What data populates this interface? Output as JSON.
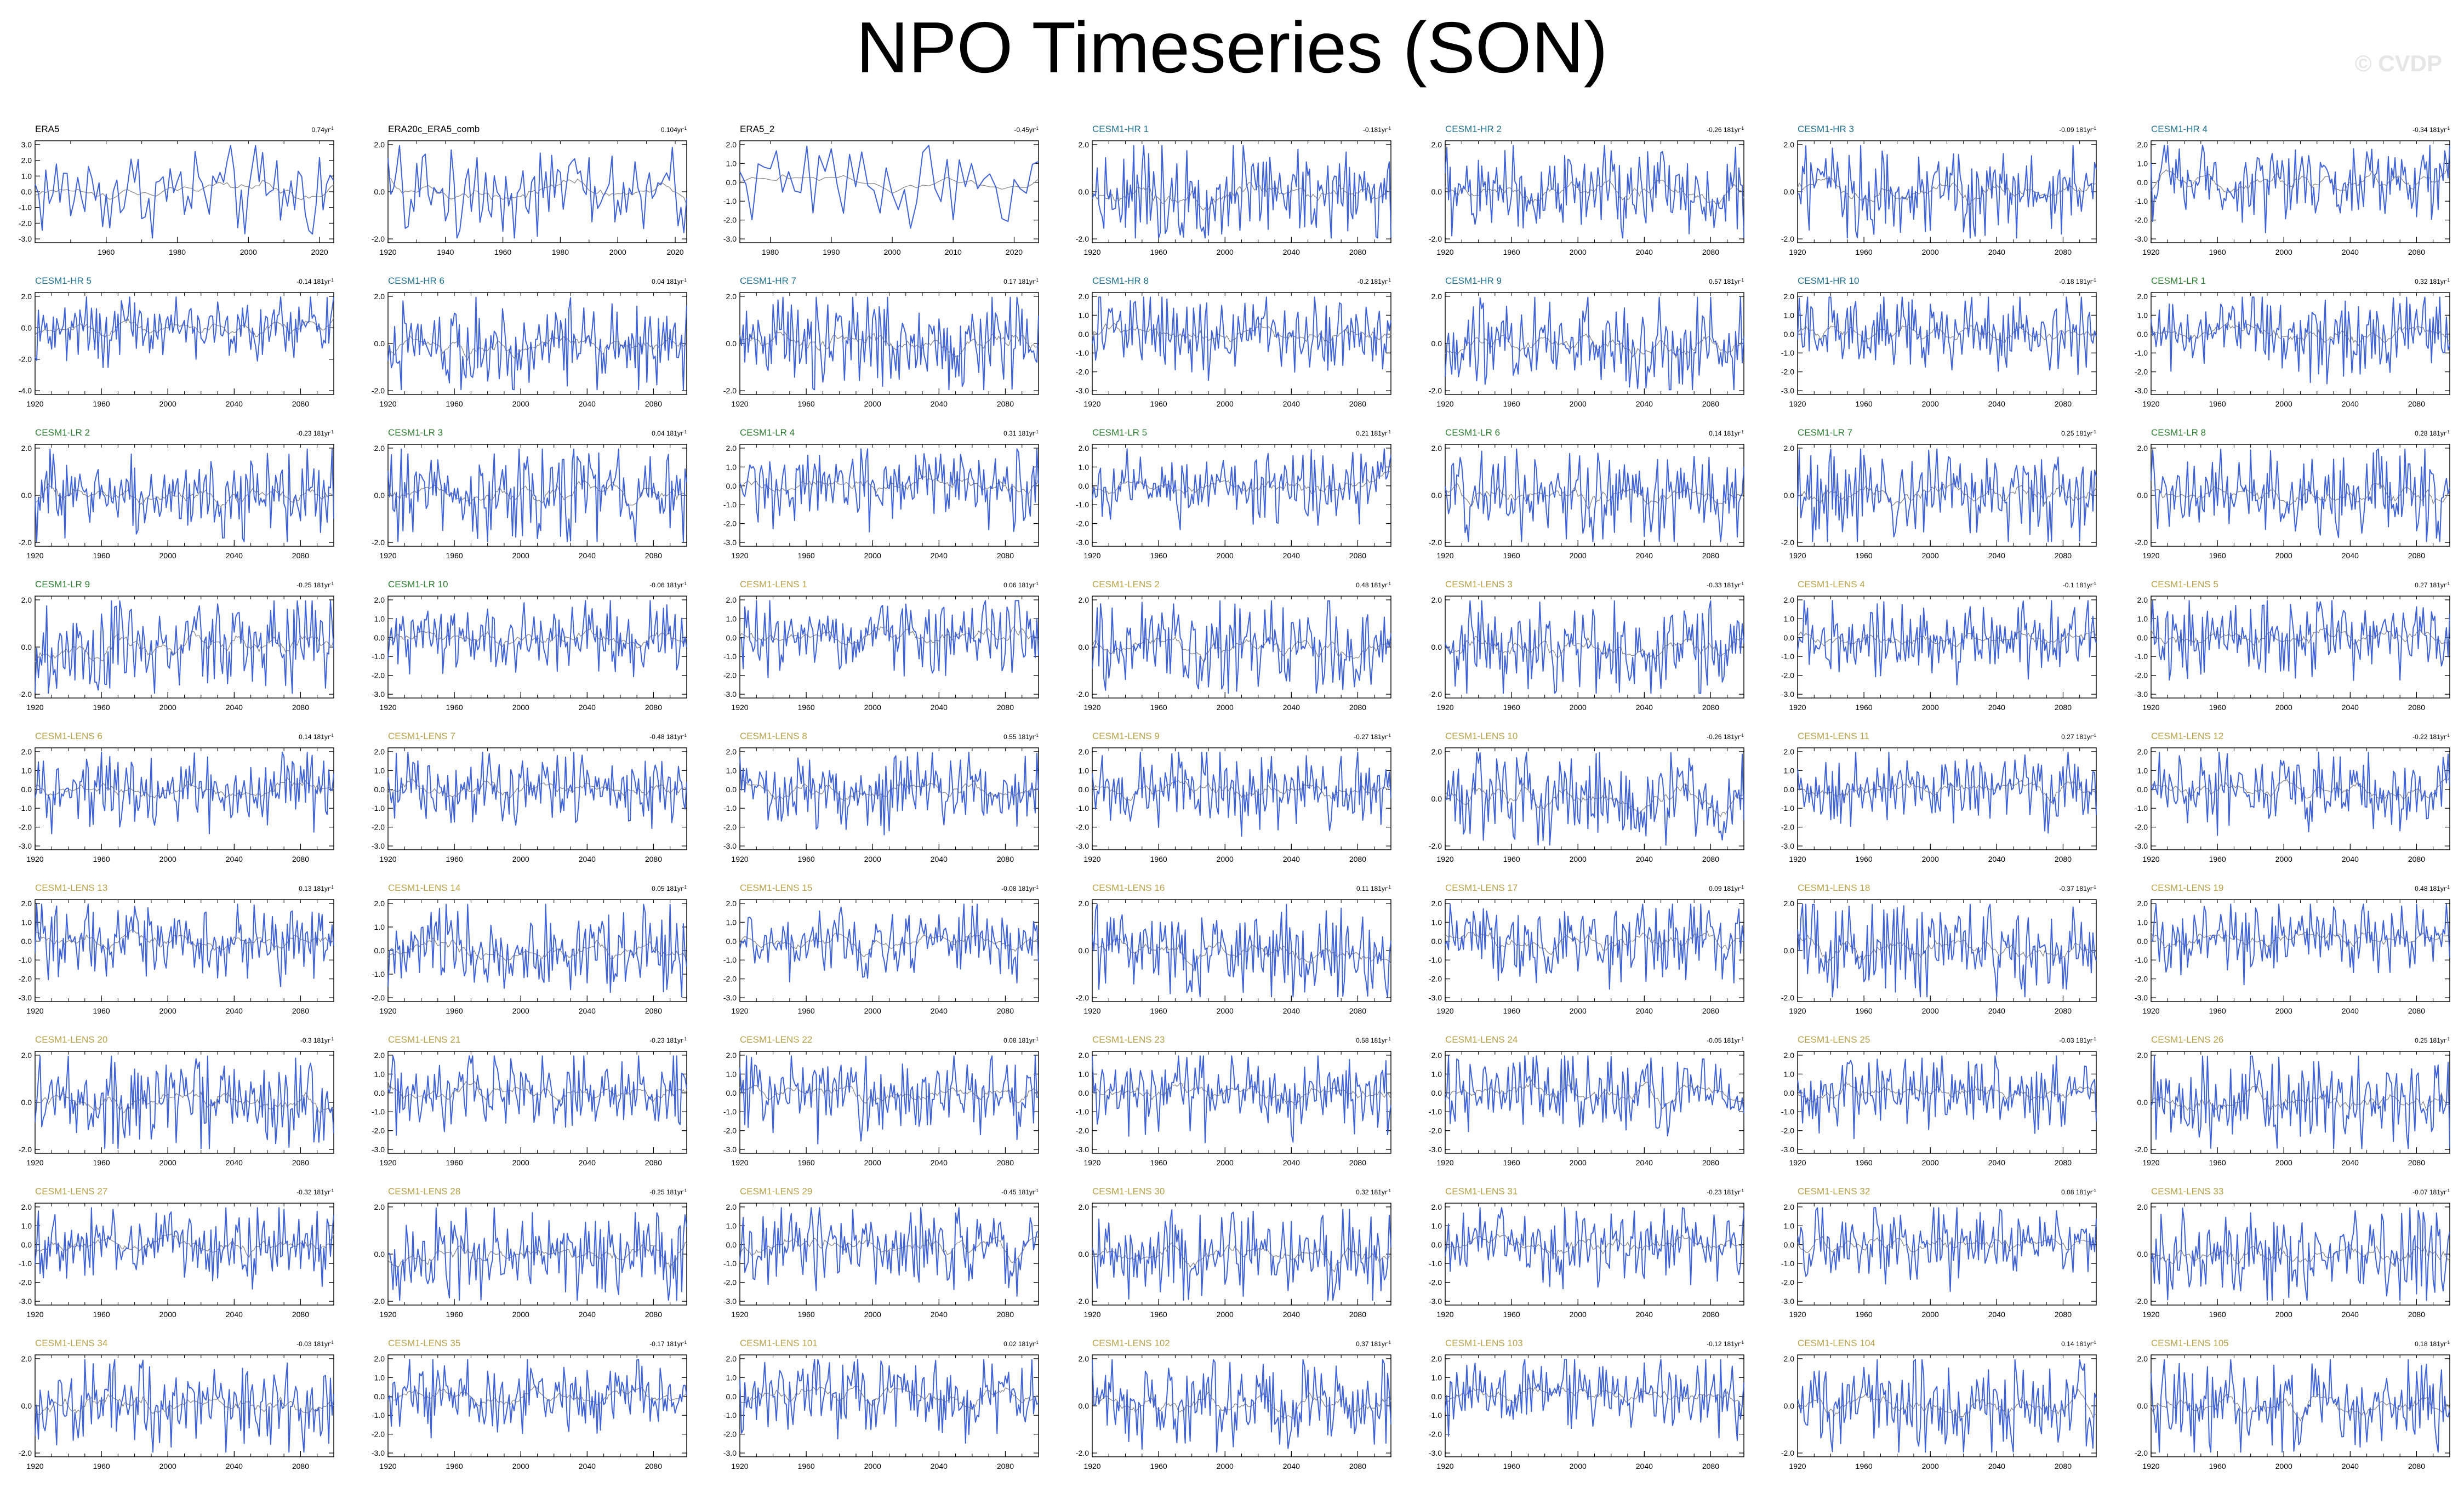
{
  "title": "NPO Timeseries (SON)",
  "watermark": "© CVDP",
  "colors": {
    "obs_title": "#000000",
    "hr_title": "#1f6f8b",
    "lr_title": "#2e7d32",
    "lens_title": "#b7a24a",
    "series": "#3f63d6",
    "filtered": "#8a8a8a",
    "axis": "#000000"
  },
  "chart_data": {
    "type": "line",
    "grid": false,
    "panels": [
      {
        "name": "ERA5",
        "group": "obs",
        "trend": "0.74",
        "x_range": [
          1940,
          2024
        ],
        "x_ticks": [
          1960,
          1980,
          2000,
          2020
        ],
        "y_ticks": [
          3.0,
          2.0,
          1.0,
          0.0,
          -1.0,
          -2.0,
          -3.0
        ]
      },
      {
        "name": "ERA20c_ERA5_comb",
        "group": "obs",
        "trend": "0.104",
        "x_range": [
          1920,
          2024
        ],
        "x_ticks": [
          1920,
          1940,
          1960,
          1980,
          2000,
          2020
        ],
        "y_ticks": [
          2.0,
          0.0,
          -2.0
        ]
      },
      {
        "name": "ERA5_2",
        "group": "obs",
        "trend": "-0.45",
        "x_range": [
          1975,
          2024
        ],
        "x_ticks": [
          1980,
          1990,
          2000,
          2010,
          2020
        ],
        "y_ticks": [
          2.0,
          1.0,
          0.0,
          -1.0,
          -2.0,
          -3.0
        ]
      },
      {
        "name": "CESM1-HR 1",
        "group": "hr",
        "trend": "-0.181",
        "y_ticks": [
          2.0,
          0.0,
          -2.0
        ]
      },
      {
        "name": "CESM1-HR 2",
        "group": "hr",
        "trend": "-0.26 181",
        "y_ticks": [
          2.0,
          0.0,
          -2.0
        ]
      },
      {
        "name": "CESM1-HR 3",
        "group": "hr",
        "trend": "-0.09 181",
        "y_ticks": [
          2.0,
          0.0,
          -2.0
        ]
      },
      {
        "name": "CESM1-HR 4",
        "group": "hr",
        "trend": "-0.34 181",
        "y_ticks": [
          2.0,
          1.0,
          0.0,
          -1.0,
          -2.0,
          -3.0
        ]
      },
      {
        "name": "CESM1-HR 5",
        "group": "hr",
        "trend": "-0.14 181",
        "y_ticks": [
          2.0,
          0.0,
          -2.0,
          -4.0
        ]
      },
      {
        "name": "CESM1-HR 6",
        "group": "hr",
        "trend": "0.04 181",
        "y_ticks": [
          2.0,
          0.0,
          -2.0
        ]
      },
      {
        "name": "CESM1-HR 7",
        "group": "hr",
        "trend": "0.17 181",
        "y_ticks": [
          2.0,
          0.0,
          -2.0
        ]
      },
      {
        "name": "CESM1-HR 8",
        "group": "hr",
        "trend": "-0.2 181",
        "y_ticks": [
          2.0,
          1.0,
          0.0,
          -1.0,
          -2.0,
          -3.0
        ]
      },
      {
        "name": "CESM1-HR 9",
        "group": "hr",
        "trend": "0.57 181",
        "y_ticks": [
          2.0,
          0.0,
          -2.0
        ]
      },
      {
        "name": "CESM1-HR 10",
        "group": "hr",
        "trend": "-0.18 181",
        "y_ticks": [
          2.0,
          1.0,
          0.0,
          -1.0,
          -2.0,
          -3.0
        ]
      },
      {
        "name": "CESM1-LR 1",
        "group": "lr",
        "trend": "0.32 181",
        "y_ticks": [
          2.0,
          1.0,
          0.0,
          -1.0,
          -2.0,
          -3.0
        ]
      },
      {
        "name": "CESM1-LR 2",
        "group": "lr",
        "trend": "-0.23 181",
        "y_ticks": [
          2.0,
          0.0,
          -2.0
        ]
      },
      {
        "name": "CESM1-LR 3",
        "group": "lr",
        "trend": "0.04 181",
        "y_ticks": [
          2.0,
          0.0,
          -2.0
        ]
      },
      {
        "name": "CESM1-LR 4",
        "group": "lr",
        "trend": "0.31 181",
        "y_ticks": [
          2.0,
          1.0,
          0.0,
          -1.0,
          -2.0,
          -3.0
        ]
      },
      {
        "name": "CESM1-LR 5",
        "group": "lr",
        "trend": "0.21 181",
        "y_ticks": [
          2.0,
          1.0,
          0.0,
          -1.0,
          -2.0,
          -3.0
        ]
      },
      {
        "name": "CESM1-LR 6",
        "group": "lr",
        "trend": "0.14 181",
        "y_ticks": [
          2.0,
          0.0,
          -2.0
        ]
      },
      {
        "name": "CESM1-LR 7",
        "group": "lr",
        "trend": "0.25 181",
        "y_ticks": [
          2.0,
          0.0,
          -2.0
        ]
      },
      {
        "name": "CESM1-LR 8",
        "group": "lr",
        "trend": "0.28 181",
        "y_ticks": [
          2.0,
          0.0,
          -2.0
        ]
      },
      {
        "name": "CESM1-LR 9",
        "group": "lr",
        "trend": "-0.25 181",
        "y_ticks": [
          2.0,
          0.0,
          -2.0
        ]
      },
      {
        "name": "CESM1-LR 10",
        "group": "lr",
        "trend": "-0.06 181",
        "y_ticks": [
          2.0,
          1.0,
          0.0,
          -1.0,
          -2.0,
          -3.0
        ]
      },
      {
        "name": "CESM1-LENS 1",
        "group": "lens",
        "trend": "0.06 181",
        "y_ticks": [
          2.0,
          1.0,
          0.0,
          -1.0,
          -2.0,
          -3.0
        ]
      },
      {
        "name": "CESM1-LENS 2",
        "group": "lens",
        "trend": "0.48 181",
        "y_ticks": [
          2.0,
          0.0,
          -2.0
        ]
      },
      {
        "name": "CESM1-LENS 3",
        "group": "lens",
        "trend": "-0.33 181",
        "y_ticks": [
          2.0,
          0.0,
          -2.0
        ]
      },
      {
        "name": "CESM1-LENS 4",
        "group": "lens",
        "trend": "-0.1 181",
        "y_ticks": [
          2.0,
          1.0,
          0.0,
          -1.0,
          -2.0,
          -3.0
        ]
      },
      {
        "name": "CESM1-LENS 5",
        "group": "lens",
        "trend": "0.27 181",
        "y_ticks": [
          2.0,
          1.0,
          0.0,
          -1.0,
          -2.0,
          -3.0
        ]
      },
      {
        "name": "CESM1-LENS 6",
        "group": "lens",
        "trend": "0.14 181",
        "y_ticks": [
          2.0,
          1.0,
          0.0,
          -1.0,
          -2.0,
          -3.0
        ]
      },
      {
        "name": "CESM1-LENS 7",
        "group": "lens",
        "trend": "-0.48 181",
        "y_ticks": [
          2.0,
          1.0,
          0.0,
          -1.0,
          -2.0,
          -3.0
        ]
      },
      {
        "name": "CESM1-LENS 8",
        "group": "lens",
        "trend": "0.55 181",
        "y_ticks": [
          2.0,
          1.0,
          0.0,
          -1.0,
          -2.0,
          -3.0
        ]
      },
      {
        "name": "CESM1-LENS 9",
        "group": "lens",
        "trend": "-0.27 181",
        "y_ticks": [
          2.0,
          1.0,
          0.0,
          -1.0,
          -2.0,
          -3.0
        ]
      },
      {
        "name": "CESM1-LENS 10",
        "group": "lens",
        "trend": "-0.26 181",
        "y_ticks": [
          2.0,
          0.0,
          -2.0
        ]
      },
      {
        "name": "CESM1-LENS 11",
        "group": "lens",
        "trend": "0.27 181",
        "y_ticks": [
          2.0,
          1.0,
          0.0,
          -1.0,
          -2.0,
          -3.0
        ]
      },
      {
        "name": "CESM1-LENS 12",
        "group": "lens",
        "trend": "-0.22 181",
        "y_ticks": [
          2.0,
          1.0,
          0.0,
          -1.0,
          -2.0,
          -3.0
        ]
      },
      {
        "name": "CESM1-LENS 13",
        "group": "lens",
        "trend": "0.13 181",
        "y_ticks": [
          2.0,
          1.0,
          0.0,
          -1.0,
          -2.0,
          -3.0
        ]
      },
      {
        "name": "CESM1-LENS 14",
        "group": "lens",
        "trend": "0.05 181",
        "y_ticks": [
          2.0,
          1.0,
          0.0,
          -1.0,
          -2.0
        ]
      },
      {
        "name": "CESM1-LENS 15",
        "group": "lens",
        "trend": "-0.08 181",
        "y_ticks": [
          2.0,
          1.0,
          0.0,
          -1.0,
          -2.0,
          -3.0
        ]
      },
      {
        "name": "CESM1-LENS 16",
        "group": "lens",
        "trend": "0.11 181",
        "y_ticks": [
          2.0,
          0.0,
          -2.0
        ]
      },
      {
        "name": "CESM1-LENS 17",
        "group": "lens",
        "trend": "0.09 181",
        "y_ticks": [
          2.0,
          1.0,
          0.0,
          -1.0,
          -2.0,
          -3.0
        ]
      },
      {
        "name": "CESM1-LENS 18",
        "group": "lens",
        "trend": "-0.37 181",
        "y_ticks": [
          2.0,
          0.0,
          -2.0
        ]
      },
      {
        "name": "CESM1-LENS 19",
        "group": "lens",
        "trend": "0.48 181",
        "y_ticks": [
          2.0,
          1.0,
          0.0,
          -1.0,
          -2.0,
          -3.0
        ]
      },
      {
        "name": "CESM1-LENS 20",
        "group": "lens",
        "trend": "-0.3 181",
        "y_ticks": [
          2.0,
          0.0,
          -2.0
        ]
      },
      {
        "name": "CESM1-LENS 21",
        "group": "lens",
        "trend": "-0.23 181",
        "y_ticks": [
          2.0,
          1.0,
          0.0,
          -1.0,
          -2.0,
          -3.0
        ]
      },
      {
        "name": "CESM1-LENS 22",
        "group": "lens",
        "trend": "0.08 181",
        "y_ticks": [
          2.0,
          1.0,
          0.0,
          -1.0,
          -2.0,
          -3.0
        ]
      },
      {
        "name": "CESM1-LENS 23",
        "group": "lens",
        "trend": "0.58 181",
        "y_ticks": [
          2.0,
          1.0,
          0.0,
          -1.0,
          -2.0,
          -3.0
        ]
      },
      {
        "name": "CESM1-LENS 24",
        "group": "lens",
        "trend": "-0.05 181",
        "y_ticks": [
          2.0,
          1.0,
          0.0,
          -1.0,
          -2.0,
          -3.0
        ]
      },
      {
        "name": "CESM1-LENS 25",
        "group": "lens",
        "trend": "-0.03 181",
        "y_ticks": [
          2.0,
          1.0,
          0.0,
          -1.0,
          -2.0,
          -3.0
        ]
      },
      {
        "name": "CESM1-LENS 26",
        "group": "lens",
        "trend": "0.25 181",
        "y_ticks": [
          2.0,
          0.0,
          -2.0
        ]
      },
      {
        "name": "CESM1-LENS 27",
        "group": "lens",
        "trend": "-0.32 181",
        "y_ticks": [
          2.0,
          1.0,
          0.0,
          -1.0,
          -2.0,
          -3.0
        ]
      },
      {
        "name": "CESM1-LENS 28",
        "group": "lens",
        "trend": "-0.25 181",
        "y_ticks": [
          2.0,
          0.0,
          -2.0
        ]
      },
      {
        "name": "CESM1-LENS 29",
        "group": "lens",
        "trend": "-0.45 181",
        "y_ticks": [
          2.0,
          1.0,
          0.0,
          -1.0,
          -2.0,
          -3.0
        ]
      },
      {
        "name": "CESM1-LENS 30",
        "group": "lens",
        "trend": "0.32 181",
        "y_ticks": [
          2.0,
          0.0,
          -2.0
        ]
      },
      {
        "name": "CESM1-LENS 31",
        "group": "lens",
        "trend": "-0.23 181",
        "y_ticks": [
          2.0,
          1.0,
          0.0,
          -1.0,
          -2.0,
          -3.0
        ]
      },
      {
        "name": "CESM1-LENS 32",
        "group": "lens",
        "trend": "0.08 181",
        "y_ticks": [
          2.0,
          1.0,
          0.0,
          -1.0,
          -2.0,
          -3.0
        ]
      },
      {
        "name": "CESM1-LENS 33",
        "group": "lens",
        "trend": "-0.07 181",
        "y_ticks": [
          2.0,
          0.0,
          -2.0
        ]
      },
      {
        "name": "CESM1-LENS 34",
        "group": "lens",
        "trend": "-0.03 181",
        "y_ticks": [
          2.0,
          0.0,
          -2.0
        ]
      },
      {
        "name": "CESM1-LENS 35",
        "group": "lens",
        "trend": "-0.17 181",
        "y_ticks": [
          2.0,
          1.0,
          0.0,
          -1.0,
          -2.0,
          -3.0
        ]
      },
      {
        "name": "CESM1-LENS 101",
        "group": "lens",
        "trend": "0.02 181",
        "y_ticks": [
          2.0,
          1.0,
          0.0,
          -1.0,
          -2.0,
          -3.0
        ]
      },
      {
        "name": "CESM1-LENS 102",
        "group": "lens",
        "trend": "0.37 181",
        "y_ticks": [
          2.0,
          0.0,
          -2.0
        ]
      },
      {
        "name": "CESM1-LENS 103",
        "group": "lens",
        "trend": "-0.12 181",
        "y_ticks": [
          2.0,
          1.0,
          0.0,
          -1.0,
          -2.0,
          -3.0
        ]
      },
      {
        "name": "CESM1-LENS 104",
        "group": "lens",
        "trend": "0.14 181",
        "y_ticks": [
          2.0,
          0.0,
          -2.0
        ]
      },
      {
        "name": "CESM1-LENS 105",
        "group": "lens",
        "trend": "0.18 181",
        "y_ticks": [
          2.0,
          0.0,
          -2.0
        ]
      }
    ],
    "defaults": {
      "x_range": [
        1920,
        2100
      ],
      "x_ticks": [
        1920,
        1960,
        2000,
        2040,
        2080
      ]
    }
  }
}
